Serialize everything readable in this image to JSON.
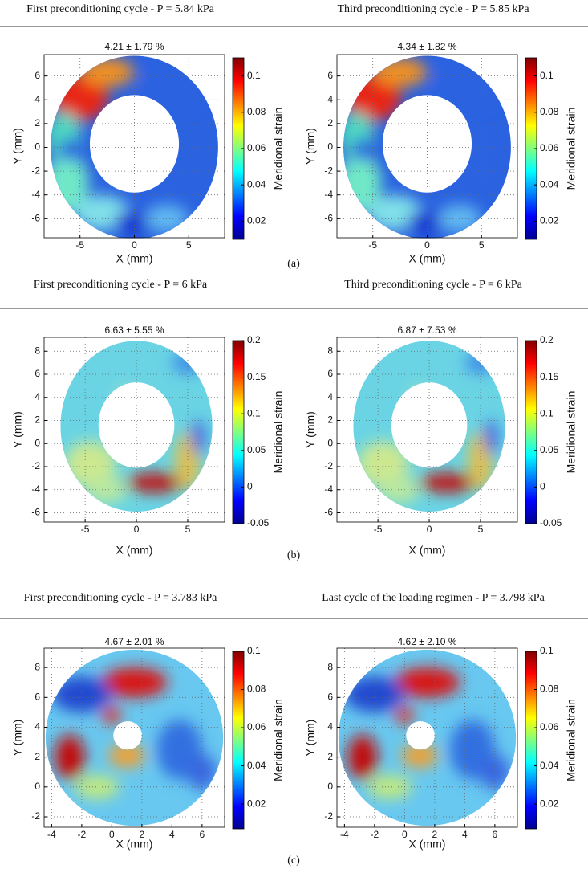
{
  "chart_data": [
    {
      "type": "heatmap",
      "header": "First preconditioning cycle - P = 5.84 kPa",
      "title": "4.21 ± 1.79 %",
      "xlabel": "X (mm)",
      "ylabel": "Y (mm)",
      "clabel": "Meridional strain",
      "xlim": [
        -8.3,
        8.3
      ],
      "xticks": [
        -5,
        0,
        5
      ],
      "ylim": [
        -7.6,
        7.8
      ],
      "yticks": [
        -6,
        -4,
        -2,
        0,
        2,
        4,
        6
      ],
      "clim": [
        0.01,
        0.11
      ],
      "cticks": [
        0.02,
        0.04,
        0.06,
        0.08,
        0.1
      ]
    },
    {
      "type": "heatmap",
      "header": "Third preconditioning cycle - P = 5.85 kPa",
      "title": "4.34 ± 1.82 %",
      "xlabel": "X (mm)",
      "ylabel": "Y (mm)",
      "clabel": "Meridional strain",
      "xlim": [
        -8.3,
        8.3
      ],
      "xticks": [
        -5,
        0,
        5
      ],
      "ylim": [
        -7.6,
        7.8
      ],
      "yticks": [
        -6,
        -4,
        -2,
        0,
        2,
        4,
        6
      ],
      "clim": [
        0.01,
        0.11
      ],
      "cticks": [
        0.02,
        0.04,
        0.06,
        0.08,
        0.1
      ]
    },
    {
      "type": "heatmap",
      "header": "First preconditioning cycle - P = 6 kPa",
      "title": "6.63 ± 5.55 %",
      "xlabel": "X (mm)",
      "ylabel": "Y (mm)",
      "clabel": "Meridional strain",
      "xlim": [
        -9,
        8.6
      ],
      "xticks": [
        -5,
        0,
        5
      ],
      "ylim": [
        -6.8,
        9.2
      ],
      "yticks": [
        -6,
        -4,
        -2,
        0,
        2,
        4,
        6,
        8
      ],
      "clim": [
        -0.05,
        0.2
      ],
      "cticks": [
        -0.05,
        0,
        0.05,
        0.1,
        0.15,
        0.2
      ]
    },
    {
      "type": "heatmap",
      "header": "Third preconditioning cycle - P = 6 kPa",
      "title": "6.87 ± 7.53 %",
      "xlabel": "X (mm)",
      "ylabel": "Y (mm)",
      "clabel": "Meridional strain",
      "xlim": [
        -9,
        8.6
      ],
      "xticks": [
        -5,
        0,
        5
      ],
      "ylim": [
        -6.8,
        9.2
      ],
      "yticks": [
        -6,
        -4,
        -2,
        0,
        2,
        4,
        6,
        8
      ],
      "clim": [
        -0.05,
        0.2
      ],
      "cticks": [
        -0.05,
        0,
        0.05,
        0.1,
        0.15,
        0.2
      ]
    },
    {
      "type": "heatmap",
      "header": "First preconditioning cycle - P = 3.783 kPa",
      "title": "4.67 ± 2.01 %",
      "xlabel": "X (mm)",
      "ylabel": "Y (mm)",
      "clabel": "Meridional strain",
      "xlim": [
        -4.5,
        7.5
      ],
      "xticks": [
        -4,
        -2,
        0,
        2,
        4,
        6
      ],
      "ylim": [
        -2.7,
        9.3
      ],
      "yticks": [
        -2,
        0,
        2,
        4,
        6,
        8
      ],
      "clim": [
        0.007,
        0.1
      ],
      "cticks": [
        0.02,
        0.04,
        0.06,
        0.08,
        0.1
      ]
    },
    {
      "type": "heatmap",
      "header": "Last cycle of the loading regimen - P = 3.798 kPa",
      "title": "4.62 ± 2.10 %",
      "xlabel": "X (mm)",
      "ylabel": "Y (mm)",
      "clabel": "Meridional strain",
      "xlim": [
        -4.5,
        7.5
      ],
      "xticks": [
        -4,
        -2,
        0,
        2,
        4,
        6
      ],
      "ylim": [
        -2.7,
        9.3
      ],
      "yticks": [
        -2,
        0,
        2,
        4,
        6,
        8
      ],
      "clim": [
        0.007,
        0.1
      ],
      "cticks": [
        0.02,
        0.04,
        0.06,
        0.08,
        0.1
      ]
    }
  ],
  "captions": [
    "(a)",
    "(b)",
    "(c)"
  ]
}
